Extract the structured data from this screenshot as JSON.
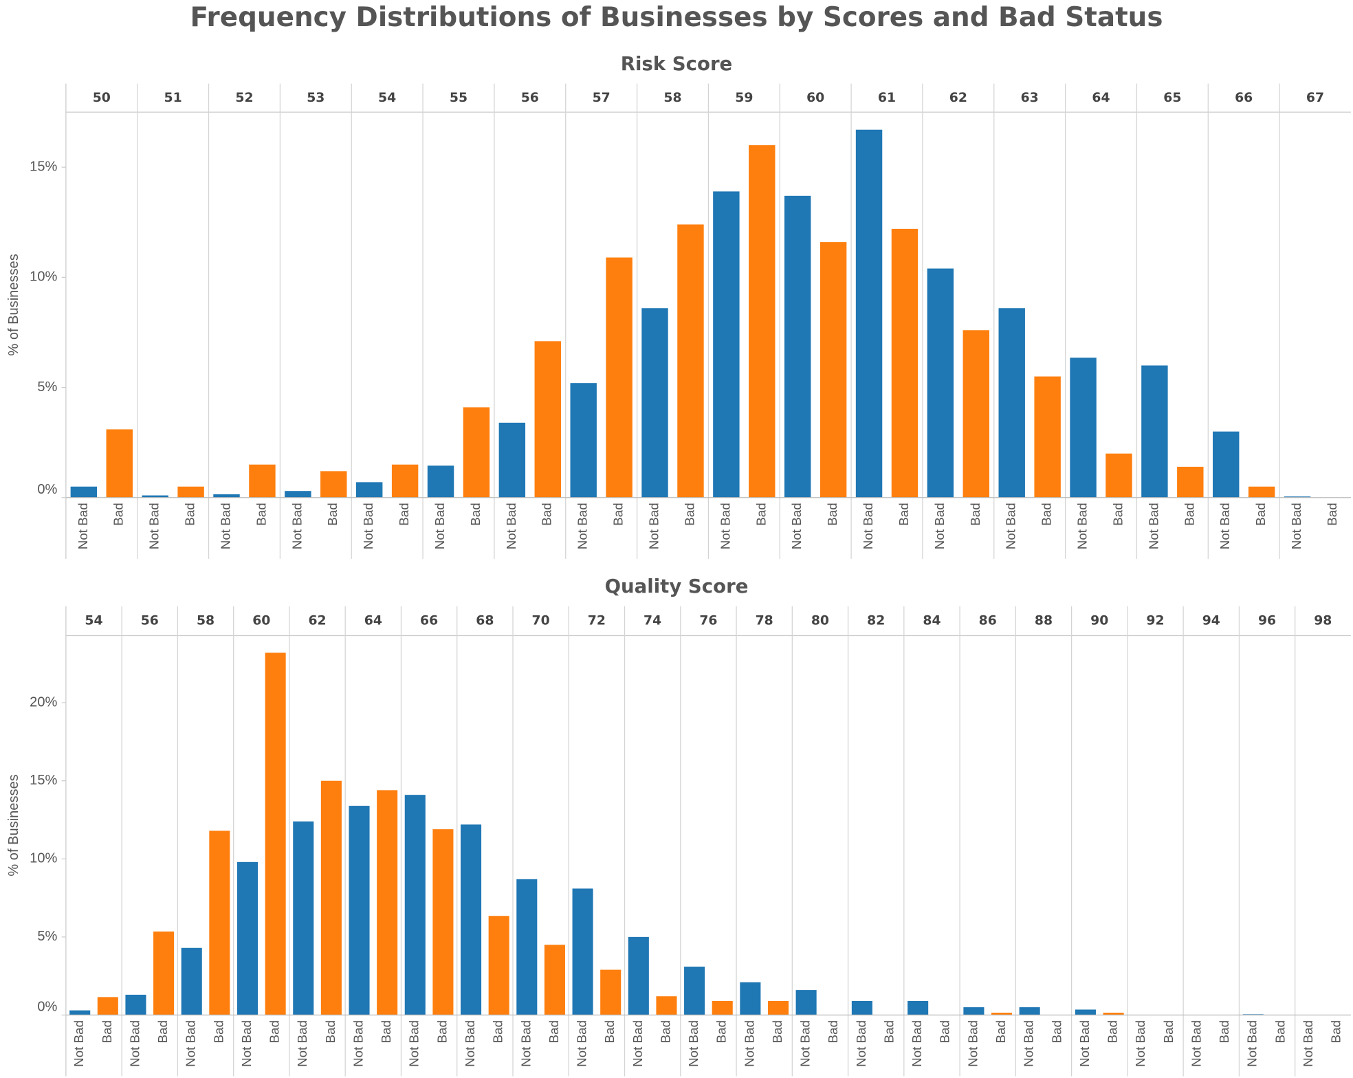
{
  "title": "Frequency Distributions of Businesses by Scores and Bad Status",
  "chart_data": [
    {
      "type": "bar",
      "title": "Risk Score",
      "y_label": "% of Businesses",
      "categories": [
        "50",
        "51",
        "52",
        "53",
        "54",
        "55",
        "56",
        "57",
        "58",
        "59",
        "60",
        "61",
        "62",
        "63",
        "64",
        "65",
        "66",
        "67"
      ],
      "series": [
        {
          "name": "Not Bad",
          "color": "#1f77b4",
          "values": [
            0.5,
            0.1,
            0.15,
            0.3,
            0.7,
            1.45,
            3.4,
            5.2,
            8.6,
            13.9,
            13.7,
            16.7,
            10.4,
            8.6,
            6.35,
            6.0,
            3.0,
            0.05
          ]
        },
        {
          "name": "Bad",
          "color": "#ff7f0e",
          "values": [
            3.1,
            0.5,
            1.5,
            1.2,
            1.5,
            4.1,
            7.1,
            10.9,
            12.4,
            16.0,
            11.6,
            12.2,
            7.6,
            5.5,
            2.0,
            1.4,
            0.5,
            0
          ]
        }
      ],
      "ylim": [
        0,
        17.5
      ],
      "yticks": [
        {
          "value": 0,
          "label": "0%"
        },
        {
          "value": 5,
          "label": "5%"
        },
        {
          "value": 10,
          "label": "10%"
        },
        {
          "value": 15,
          "label": "15%"
        }
      ]
    },
    {
      "type": "bar",
      "title": "Quality Score",
      "y_label": "% of Businesses",
      "categories": [
        "54",
        "56",
        "58",
        "60",
        "62",
        "64",
        "66",
        "68",
        "70",
        "72",
        "74",
        "76",
        "78",
        "80",
        "82",
        "84",
        "86",
        "88",
        "90",
        "92",
        "94",
        "96",
        "98"
      ],
      "series": [
        {
          "name": "Not Bad",
          "color": "#1f77b4",
          "values": [
            0.3,
            1.3,
            4.3,
            9.8,
            12.4,
            13.4,
            14.1,
            12.2,
            8.7,
            8.1,
            5.0,
            3.1,
            2.1,
            1.6,
            0.9,
            0.9,
            0.5,
            0.5,
            0.35,
            0,
            0,
            0.05,
            0
          ]
        },
        {
          "name": "Bad",
          "color": "#ff7f0e",
          "values": [
            1.15,
            5.35,
            11.8,
            23.2,
            15.0,
            14.4,
            11.9,
            6.35,
            4.5,
            2.9,
            1.2,
            0.9,
            0.9,
            0,
            0,
            0,
            0.15,
            0,
            0.15,
            0,
            0,
            0,
            0
          ]
        }
      ],
      "ylim": [
        0,
        24.3
      ],
      "yticks": [
        {
          "value": 0,
          "label": "0%"
        },
        {
          "value": 5,
          "label": "5%"
        },
        {
          "value": 10,
          "label": "10%"
        },
        {
          "value": 15,
          "label": "15%"
        },
        {
          "value": 20,
          "label": "20%"
        }
      ]
    }
  ]
}
